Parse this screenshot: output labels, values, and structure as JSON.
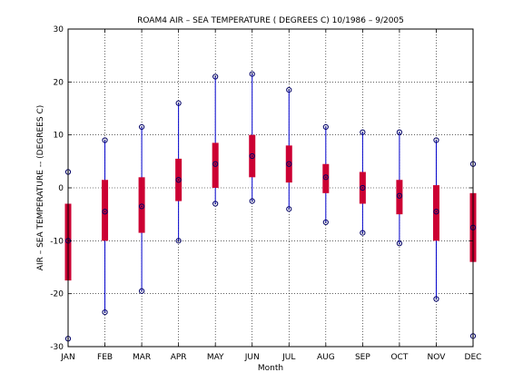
{
  "chart_data": {
    "type": "boxplot",
    "title": "ROAM4  AIR – SEA TEMPERATURE ( DEGREES C) 10/1986 – 9/2005",
    "xlabel": "Month",
    "ylabel": "AIR – SEA TEMPERATURE -- (DEGREES C)",
    "ylim": [
      -30,
      30
    ],
    "yticks": [
      -30,
      -20,
      -10,
      0,
      10,
      20,
      30
    ],
    "grid": true,
    "categories": [
      "JAN",
      "FEB",
      "MAR",
      "APR",
      "MAY",
      "JUN",
      "JUL",
      "AUG",
      "SEP",
      "OCT",
      "NOV",
      "DEC"
    ],
    "series": [
      {
        "min": [
          -28.5,
          -23.5,
          -19.5,
          -10.0,
          -3.0,
          -2.5,
          -4.0,
          -6.5,
          -8.5,
          -10.5,
          -21.0,
          -28.0
        ],
        "q1": [
          -17.5,
          -10.0,
          -8.5,
          -2.5,
          0.0,
          2.0,
          1.0,
          -1.0,
          -3.0,
          -5.0,
          -10.0,
          -14.0
        ],
        "median": [
          -10.0,
          -4.5,
          -3.5,
          1.5,
          4.5,
          6.0,
          4.5,
          2.0,
          0.0,
          -1.5,
          -4.5,
          -7.5
        ],
        "q3": [
          -3.0,
          1.5,
          2.0,
          5.5,
          8.5,
          10.0,
          8.0,
          4.5,
          3.0,
          1.5,
          0.5,
          -1.0
        ],
        "max": [
          3.0,
          9.0,
          11.5,
          16.0,
          21.0,
          21.5,
          18.5,
          11.5,
          10.5,
          10.5,
          9.0,
          4.5
        ]
      }
    ],
    "colors": {
      "whisker": "#0000cc",
      "box": "#cc0033",
      "marker": "#000066"
    }
  }
}
